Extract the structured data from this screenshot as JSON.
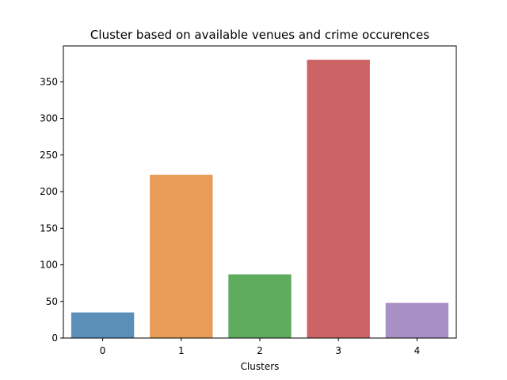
{
  "chart_data": {
    "type": "bar",
    "title": "Cluster based on available venues and crime occurences",
    "xlabel": "Clusters",
    "ylabel": "",
    "categories": [
      "0",
      "1",
      "2",
      "3",
      "4"
    ],
    "values": [
      35,
      223,
      87,
      380,
      48
    ],
    "colors": [
      "#5b8fb9",
      "#e89c57",
      "#60ac5e",
      "#cc6364",
      "#a990c4"
    ],
    "yticks": [
      0,
      50,
      100,
      150,
      200,
      250,
      300,
      350
    ],
    "ylim": [
      0,
      399
    ],
    "grid": false,
    "legend": "none"
  }
}
